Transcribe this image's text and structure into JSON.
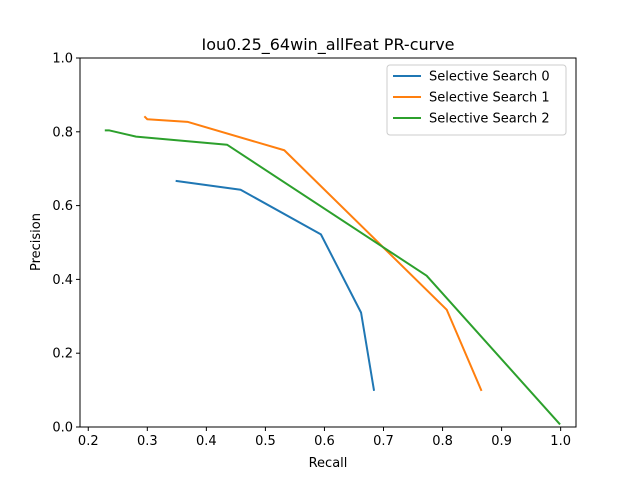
{
  "chart_data": {
    "type": "line",
    "title": "Iou0.25_64win_allFeat PR-curve",
    "xlabel": "Recall",
    "ylabel": "Precision",
    "xlim": [
      0.186,
      1.026
    ],
    "ylim": [
      0.0,
      1.0
    ],
    "xticks": [
      "0.2",
      "0.3",
      "0.4",
      "0.5",
      "0.6",
      "0.7",
      "0.8",
      "0.9",
      "1.0"
    ],
    "yticks": [
      "0.0",
      "0.2",
      "0.4",
      "0.6",
      "0.8",
      "1.0"
    ],
    "grid": false,
    "legend_position": "top-right",
    "series": [
      {
        "name": "Selective Search 0",
        "color": "#1f77b4",
        "x": [
          0.348,
          0.458,
          0.594,
          0.662,
          0.684
        ],
        "y": [
          0.667,
          0.643,
          0.522,
          0.31,
          0.098
        ]
      },
      {
        "name": "Selective Search 1",
        "color": "#ff7f0e",
        "x": [
          0.295,
          0.3,
          0.368,
          0.532,
          0.807,
          0.866
        ],
        "y": [
          0.842,
          0.834,
          0.827,
          0.75,
          0.318,
          0.098
        ]
      },
      {
        "name": "Selective Search 2",
        "color": "#2ca02c",
        "x": [
          0.228,
          0.235,
          0.281,
          0.435,
          0.773,
          0.999
        ],
        "y": [
          0.804,
          0.804,
          0.787,
          0.765,
          0.41,
          0.007
        ]
      }
    ]
  }
}
